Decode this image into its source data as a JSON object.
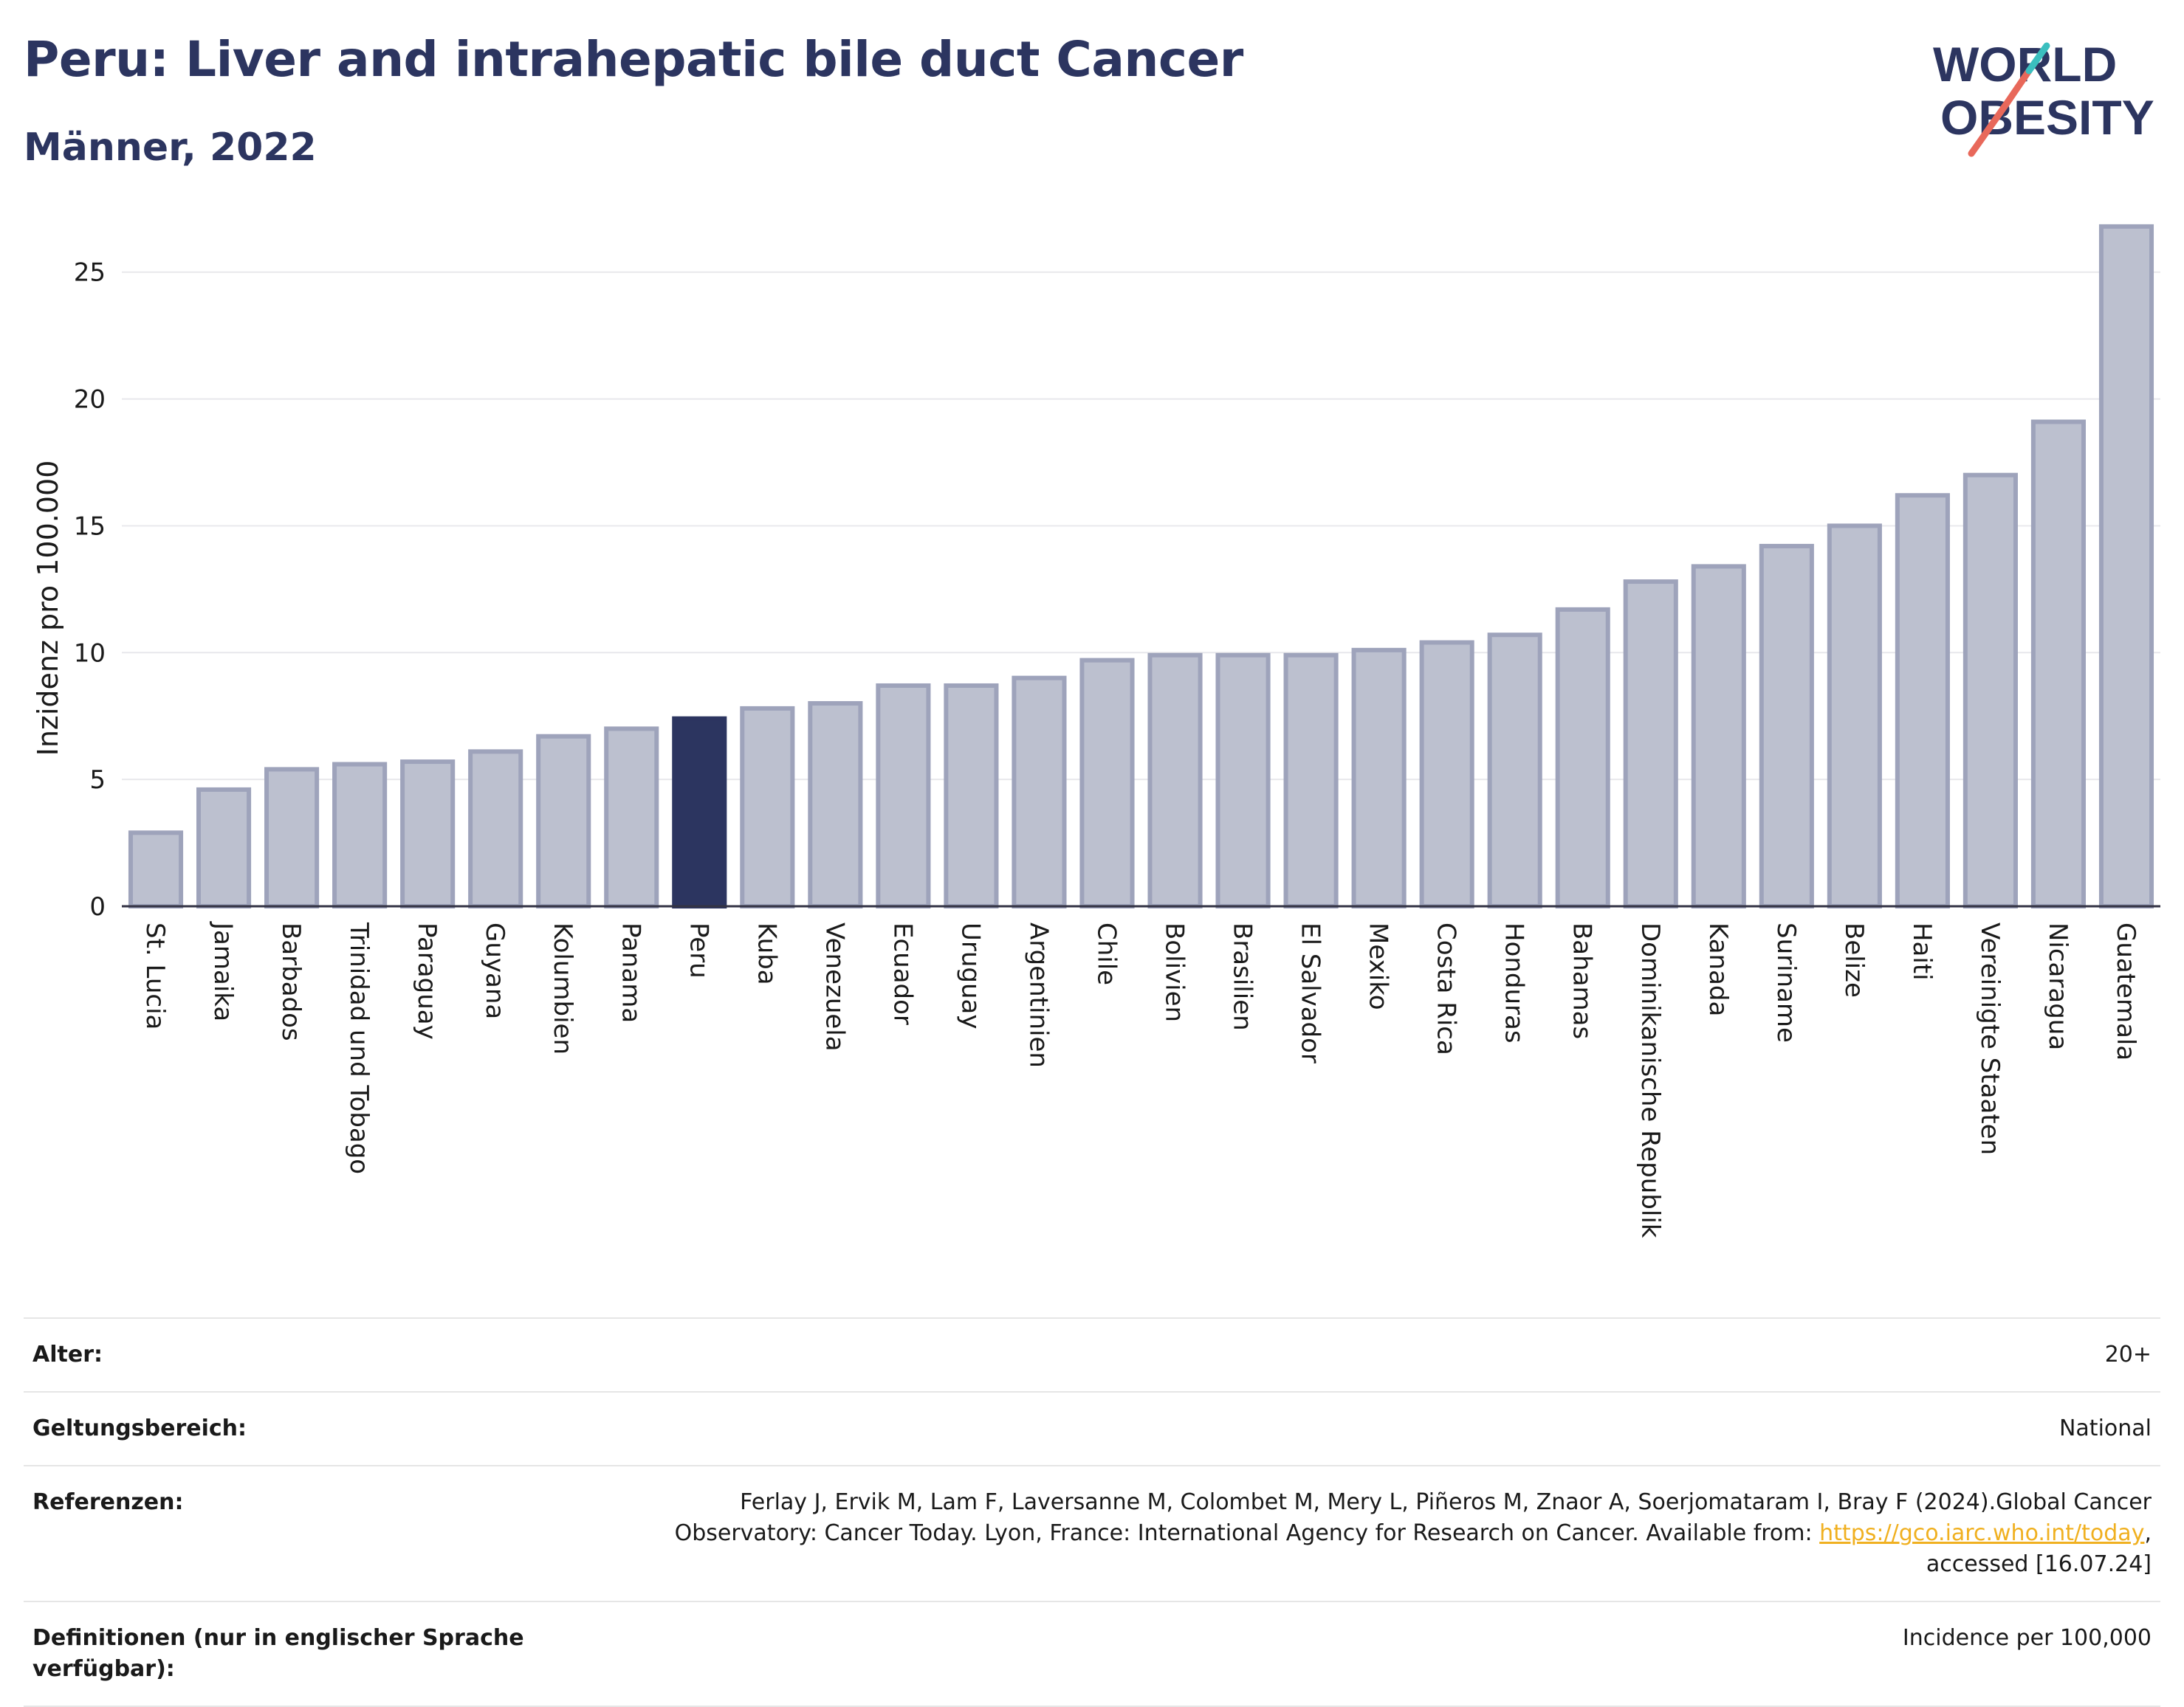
{
  "header": {
    "title": "Peru: Liver and intrahepatic bile duct Cancer",
    "subtitle": "Männer, 2022"
  },
  "logo": {
    "line1": "WORLD",
    "line2": "OBESITY",
    "colors": {
      "text": "#2c3560",
      "accent_red": "#e8685a",
      "accent_teal": "#3bbfbf"
    }
  },
  "chart_data": {
    "type": "bar",
    "ylabel": "Inzidenz pro 100.000",
    "xlabel": "",
    "ylim": [
      0,
      27
    ],
    "yticks": [
      0,
      5,
      10,
      15,
      20,
      25
    ],
    "grid": true,
    "highlight": "Peru",
    "colors": {
      "bar": "#bcc0cf",
      "bar_edge": "#9ea3bb",
      "highlight": "#2c3560"
    },
    "categories": [
      "St. Lucia",
      "Jamaika",
      "Barbados",
      "Trinidad und Tobago",
      "Paraguay",
      "Guyana",
      "Kolumbien",
      "Panama",
      "Peru",
      "Kuba",
      "Venezuela",
      "Ecuador",
      "Uruguay",
      "Argentinien",
      "Chile",
      "Bolivien",
      "Brasilien",
      "El Salvador",
      "Mexiko",
      "Costa Rica",
      "Honduras",
      "Bahamas",
      "Dominikanische Republik",
      "Kanada",
      "Suriname",
      "Belize",
      "Haiti",
      "Vereinigte Staaten",
      "Nicaragua",
      "Guatemala"
    ],
    "values": [
      2.9,
      4.6,
      5.4,
      5.6,
      5.7,
      6.1,
      6.7,
      7.0,
      7.4,
      7.8,
      8.0,
      8.7,
      8.7,
      9.0,
      9.7,
      9.9,
      9.9,
      9.9,
      10.1,
      10.4,
      10.7,
      11.7,
      12.8,
      13.4,
      14.2,
      15.0,
      16.2,
      17.0,
      19.1,
      26.8
    ]
  },
  "info": {
    "rows": [
      {
        "key": "Alter:",
        "value": "20+"
      },
      {
        "key": "Geltungsbereich:",
        "value": "National"
      },
      {
        "key": "Referenzen:",
        "value_pre": "Ferlay J, Ervik M, Lam F, Laversanne M, Colombet M, Mery L, Piñeros M, Znaor A, Soerjomataram I, Bray F (2024).Global Cancer Observatory: Cancer Today. Lyon, France: International Agency for Research on Cancer. Available from: ",
        "link": "https://gco.iarc.who.int/today",
        "value_post": ", accessed [16.07.24]"
      },
      {
        "key": "Definitionen (nur in englischer Sprache verfügbar):",
        "value": "Incidence per 100,000"
      }
    ]
  }
}
